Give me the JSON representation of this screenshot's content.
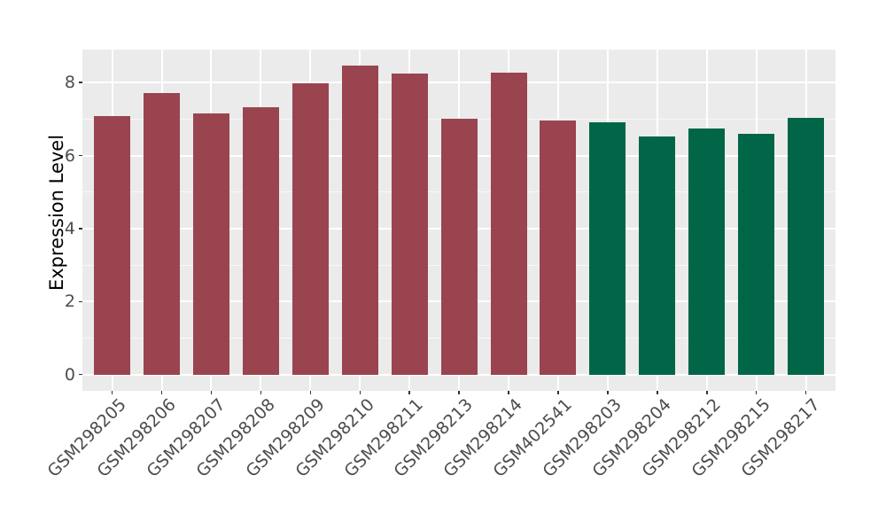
{
  "chart_data": {
    "type": "bar",
    "title": "",
    "xlabel": "",
    "ylabel": "Expression Level",
    "categories": [
      "GSM298205",
      "GSM298206",
      "GSM298207",
      "GSM298208",
      "GSM298209",
      "GSM298210",
      "GSM298211",
      "GSM298213",
      "GSM298214",
      "GSM402541",
      "GSM298203",
      "GSM298204",
      "GSM298212",
      "GSM298215",
      "GSM298217"
    ],
    "values": [
      7.08,
      7.7,
      7.15,
      7.33,
      7.98,
      8.47,
      8.25,
      7.01,
      8.27,
      6.96,
      6.9,
      6.53,
      6.73,
      6.6,
      7.04
    ],
    "bar_colors": [
      "#9A4450",
      "#9A4450",
      "#9A4450",
      "#9A4450",
      "#9A4450",
      "#9A4450",
      "#9A4450",
      "#9A4450",
      "#9A4450",
      "#9A4450",
      "#006647",
      "#006647",
      "#006647",
      "#006647",
      "#006647"
    ],
    "yticks": [
      "0",
      "2",
      "4",
      "6",
      "8"
    ],
    "ytick_values": [
      0,
      2,
      4,
      6,
      8
    ],
    "minor_ytick_values": [
      1,
      3,
      5,
      7
    ],
    "ylim": [
      0,
      8.9
    ],
    "grid": true,
    "legend": "none",
    "x_label_rotation_deg": 45,
    "colors": {
      "panel_background": "#EBEBEB",
      "gridline": "#FFFFFF",
      "axis_text": "#4D4D4D",
      "axis_title": "#000000",
      "tick_mark": "#333333",
      "group_left": "#9A4450",
      "group_right": "#006647"
    }
  }
}
